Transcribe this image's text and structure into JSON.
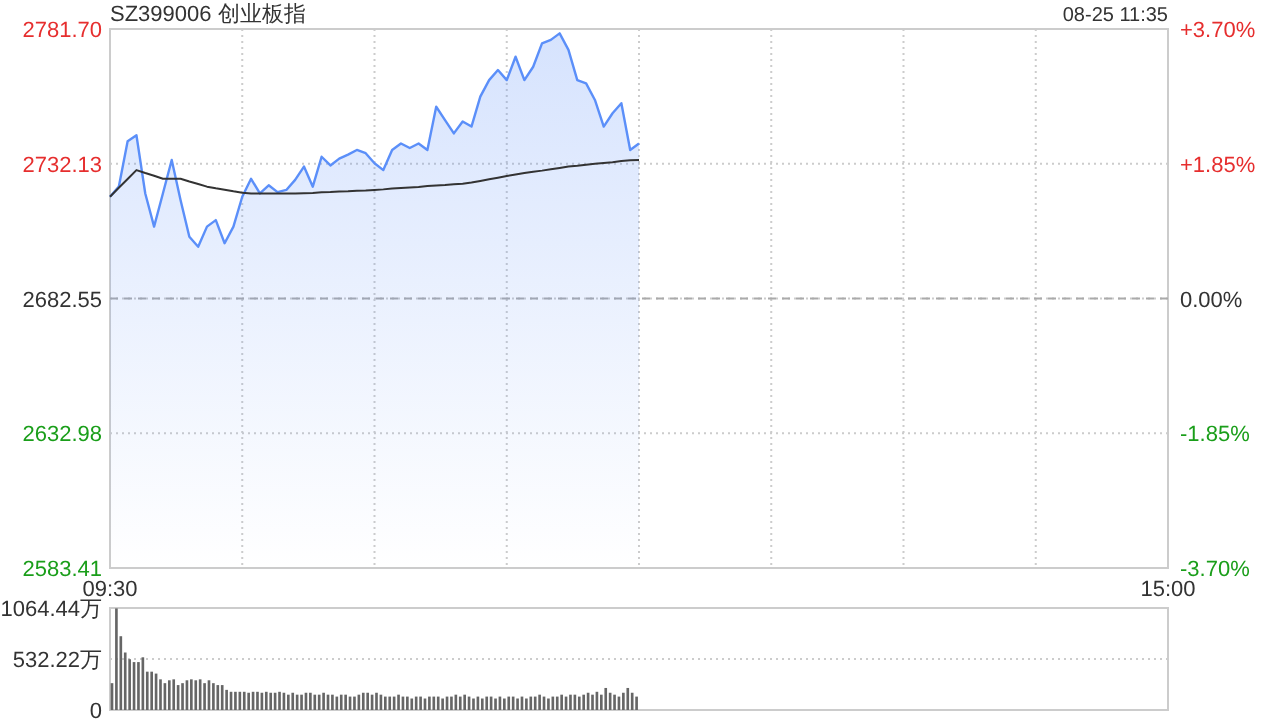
{
  "chart_data": [
    {
      "type": "area",
      "title": "SZ399006 创业板指",
      "annotations": [
        "08-25 11:35"
      ],
      "categories": [
        "09:30",
        null,
        null,
        null,
        null,
        null,
        null,
        null,
        null,
        null,
        null,
        null,
        null,
        null,
        null,
        null,
        null,
        null,
        null,
        null,
        null,
        null,
        null,
        null,
        null,
        null,
        null,
        null,
        null,
        null,
        null,
        null,
        null,
        null,
        null,
        null,
        null,
        null,
        null,
        null,
        null,
        null,
        null,
        null,
        null,
        null,
        null,
        null,
        null,
        null,
        null,
        null,
        null,
        null,
        null,
        null,
        null,
        null,
        null,
        null,
        null,
        null,
        null,
        null,
        null,
        null,
        null,
        null,
        null,
        null,
        null,
        null,
        null,
        null,
        null,
        null,
        null,
        null,
        null,
        null,
        null,
        null,
        null,
        null,
        null,
        null,
        null,
        null,
        null,
        null,
        null,
        null,
        null,
        null,
        null,
        null,
        null,
        null,
        null,
        null,
        null,
        null,
        null,
        null,
        null,
        null,
        null,
        null,
        null,
        null,
        null,
        null,
        null,
        null,
        null,
        null,
        null,
        null,
        null,
        null,
        "15:00"
      ],
      "ylim": [
        2583.41,
        2781.7
      ],
      "yticks": [
        {
          "value": 2583.41,
          "label": "2583.41"
        },
        {
          "value": 2632.98,
          "label": "2632.98"
        },
        {
          "value": 2682.55,
          "label": "2682.55"
        },
        {
          "value": 2732.13,
          "label": "2732.13"
        },
        {
          "value": 2781.7,
          "label": "2781.70"
        }
      ],
      "y2lim": [
        -3.7,
        3.7
      ],
      "y2ticks": [
        {
          "value": -3.7,
          "label": "-3.70%"
        },
        {
          "value": -1.85,
          "label": "-1.85%"
        },
        {
          "value": 0,
          "label": "0.00%"
        },
        {
          "value": 1.85,
          "label": "+1.85%"
        },
        {
          "value": 3.7,
          "label": "+3.70%"
        }
      ],
      "grid": true,
      "ref_lines": [
        {
          "axis": "y",
          "value": 2682.55,
          "line_style": "dashed",
          "color": "#aaaaaa"
        }
      ],
      "series": [
        {
          "color": "#5b8ff9",
          "values": [
            2720.0,
            2723.7,
            2740.4,
            2742.6,
            2721.2,
            2709.0,
            2721.2,
            2733.5,
            2718.8,
            2705.3,
            2701.6,
            2709.0,
            2711.4,
            2702.9,
            2709.0,
            2720.0,
            2726.6,
            2721.2,
            2724.2,
            2721.7,
            2722.5,
            2726.2,
            2731.1,
            2723.7,
            2734.7,
            2731.5,
            2734.0,
            2735.5,
            2737.2,
            2736.0,
            2732.3,
            2729.8,
            2737.2,
            2739.6,
            2737.9,
            2739.6,
            2737.2,
            2753.1,
            2748.2,
            2743.3,
            2747.7,
            2745.8,
            2756.8,
            2762.9,
            2766.6,
            2762.9,
            2771.5,
            2762.9,
            2767.8,
            2776.4,
            2777.7,
            2780.1,
            2774.0,
            2762.9,
            2761.7,
            2755.6,
            2745.8,
            2750.7,
            2754.4,
            2737.2,
            2739.6,
            null,
            null,
            null,
            null,
            null,
            null,
            null,
            null,
            null,
            null,
            null,
            null,
            null,
            null,
            null,
            null,
            null,
            null,
            null,
            null,
            null,
            null,
            null,
            null,
            null,
            null,
            null,
            null,
            null,
            null,
            null,
            null,
            null,
            null,
            null,
            null,
            null,
            null,
            null,
            null,
            null,
            null,
            null,
            null,
            null,
            null,
            null,
            null,
            null,
            null,
            null,
            null,
            null,
            null,
            null,
            null,
            null,
            null,
            null,
            null
          ]
        },
        {
          "type": "line",
          "color": "#333333",
          "values": [
            2720.0,
            2723.3,
            2726.5,
            2729.8,
            2728.7,
            2727.7,
            2726.6,
            2726.6,
            2726.6,
            2725.6,
            2724.7,
            2723.7,
            2723.1,
            2722.6,
            2722.0,
            2721.5,
            2721.2,
            2721.2,
            2721.2,
            2721.2,
            2721.2,
            2721.2,
            2721.3,
            2721.4,
            2721.6,
            2721.7,
            2721.9,
            2722.0,
            2722.2,
            2722.3,
            2722.5,
            2722.7,
            2723.0,
            2723.2,
            2723.4,
            2723.6,
            2723.9,
            2724.1,
            2724.3,
            2724.6,
            2724.8,
            2725.2,
            2725.8,
            2726.4,
            2727.0,
            2727.6,
            2728.2,
            2728.7,
            2729.2,
            2729.6,
            2730.1,
            2730.6,
            2731.1,
            2731.4,
            2731.8,
            2732.1,
            2732.4,
            2732.7,
            2733.1,
            2733.4,
            2733.5,
            null,
            null,
            null,
            null,
            null,
            null,
            null,
            null,
            null,
            null,
            null,
            null,
            null,
            null,
            null,
            null,
            null,
            null,
            null,
            null,
            null,
            null,
            null,
            null,
            null,
            null,
            null,
            null,
            null,
            null,
            null,
            null,
            null,
            null,
            null,
            null,
            null,
            null,
            null,
            null,
            null,
            null,
            null,
            null,
            null,
            null,
            null,
            null,
            null,
            null,
            null,
            null,
            null,
            null,
            null,
            null,
            null,
            null,
            null,
            null
          ]
        }
      ]
    },
    {
      "type": "bar",
      "tick_labels": "y",
      "grid": "y",
      "categories": [
        null,
        null,
        null,
        null,
        null,
        null,
        null,
        null,
        null,
        null,
        null,
        null,
        null,
        null,
        null,
        null,
        null,
        null,
        null,
        null,
        null,
        null,
        null,
        null,
        null,
        null,
        null,
        null,
        null,
        null,
        null,
        null,
        null,
        null,
        null,
        null,
        null,
        null,
        null,
        null,
        null,
        null,
        null,
        null,
        null,
        null,
        null,
        null,
        null,
        null,
        null,
        null,
        null,
        null,
        null,
        null,
        null,
        null,
        null,
        null,
        null,
        null,
        null,
        null,
        null,
        null,
        null,
        null,
        null,
        null,
        null,
        null,
        null,
        null,
        null,
        null,
        null,
        null,
        null,
        null,
        null,
        null,
        null,
        null,
        null,
        null,
        null,
        null,
        null,
        null,
        null,
        null,
        null,
        null,
        null,
        null,
        null,
        null,
        null,
        null,
        null,
        null,
        null,
        null,
        null,
        null,
        null,
        null,
        null,
        null,
        null,
        null,
        null,
        null,
        null,
        null,
        null,
        null,
        null,
        null,
        null,
        null,
        null,
        null,
        null,
        null,
        null,
        null,
        null,
        null,
        null,
        null,
        null,
        null,
        null,
        null,
        null,
        null,
        null,
        null,
        null,
        null,
        null,
        null,
        null,
        null,
        null,
        null,
        null,
        null,
        null,
        null,
        null,
        null,
        null,
        null,
        null,
        null,
        null,
        null,
        null,
        null,
        null,
        null,
        null,
        null,
        null,
        null,
        null,
        null,
        null,
        null,
        null,
        null,
        null,
        null,
        null,
        null,
        null,
        null,
        null,
        null,
        null,
        null,
        null,
        null,
        null,
        null,
        null,
        null,
        null,
        null,
        null,
        null,
        null,
        null,
        null,
        null,
        null,
        null,
        null,
        null,
        null,
        null,
        null,
        null,
        null,
        null,
        null,
        null,
        null,
        null,
        null,
        null,
        null,
        null,
        null,
        null,
        null,
        null,
        null,
        null,
        null,
        null,
        null,
        null,
        null,
        null,
        null,
        null,
        null,
        null,
        null,
        null,
        null,
        null,
        null,
        null,
        null,
        null,
        null
      ],
      "ylim": [
        0,
        1064.44
      ],
      "yticks": [
        {
          "value": 0,
          "label": "0"
        },
        {
          "value": 532.22,
          "label": "532.22万"
        },
        {
          "value": 1064.44,
          "label": "1064.44万"
        }
      ],
      "series": [
        {
          "color": "#666666",
          "values": [
            280,
            1060,
            770,
            600,
            530,
            500,
            500,
            550,
            400,
            400,
            380,
            320,
            280,
            310,
            320,
            260,
            280,
            310,
            320,
            310,
            320,
            280,
            310,
            280,
            260,
            260,
            210,
            190,
            190,
            190,
            190,
            180,
            190,
            190,
            180,
            190,
            180,
            180,
            190,
            180,
            160,
            180,
            160,
            160,
            180,
            180,
            160,
            160,
            180,
            160,
            160,
            140,
            160,
            160,
            140,
            140,
            160,
            180,
            180,
            160,
            180,
            160,
            140,
            140,
            140,
            160,
            140,
            140,
            120,
            140,
            140,
            120,
            140,
            140,
            140,
            120,
            140,
            140,
            160,
            140,
            160,
            140,
            120,
            140,
            120,
            140,
            140,
            120,
            140,
            120,
            140,
            140,
            120,
            140,
            120,
            140,
            140,
            160,
            140,
            120,
            140,
            140,
            160,
            140,
            160,
            160,
            140,
            160,
            180,
            160,
            190,
            160,
            230,
            180,
            160,
            140,
            180,
            230,
            180,
            140,
            null,
            null,
            null,
            null,
            null,
            null,
            null,
            null,
            null,
            null,
            null,
            null,
            null,
            null,
            null,
            null,
            null,
            null,
            null,
            null,
            null,
            null,
            null,
            null,
            null,
            null,
            null,
            null,
            null,
            null,
            null,
            null,
            null,
            null,
            null,
            null,
            null,
            null,
            null,
            null,
            null,
            null,
            null,
            null,
            null,
            null,
            null,
            null,
            null,
            null,
            null,
            null,
            null,
            null,
            null,
            null,
            null,
            null,
            null,
            null,
            null,
            null,
            null,
            null,
            null,
            null,
            null,
            null,
            null,
            null,
            null,
            null,
            null,
            null,
            null,
            null,
            null,
            null,
            null,
            null,
            null,
            null,
            null,
            null,
            null,
            null,
            null,
            null,
            null,
            null,
            null,
            null,
            null,
            null,
            null,
            null,
            null,
            null,
            null,
            null,
            null,
            null,
            null,
            null,
            null,
            null,
            null,
            null,
            null,
            null,
            null,
            null,
            null,
            null,
            null,
            null,
            null,
            null,
            null,
            null,
            null
          ]
        }
      ]
    }
  ]
}
